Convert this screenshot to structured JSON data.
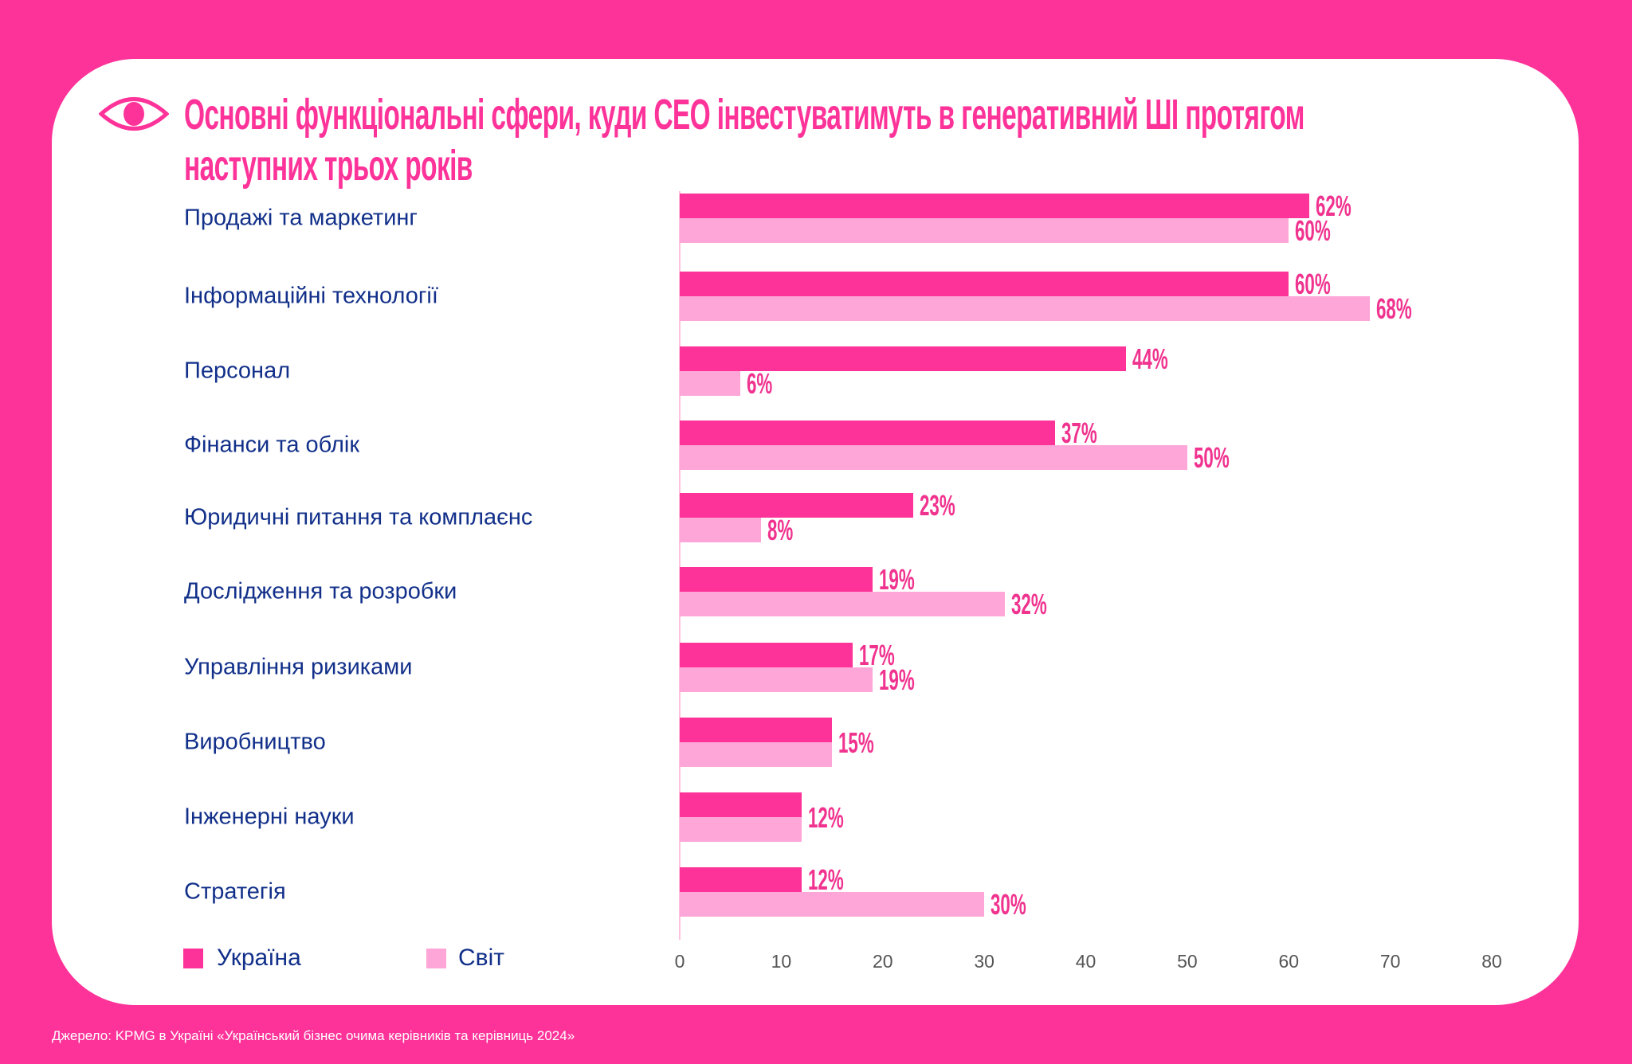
{
  "title_lines": [
    "Основні функціональні сфери, куди CEO інвестуватимуть в генеративний ШІ протягом",
    "наступних трьох років"
  ],
  "source": "Джерело: KPMG в Україні «Український бізнес очима керівників та керівниць 2024»",
  "icon": "eye-icon",
  "colors": {
    "background": "#fd3399",
    "ukraine": "#fd3399",
    "world": "#ffa6d8",
    "label_text": "#12308a",
    "value_text": "#f0338f"
  },
  "chart_data": {
    "type": "bar",
    "orientation": "horizontal",
    "title": "Основні функціональні сфери, куди CEO інвестуватимуть в генеративний ШІ протягом наступних трьох років",
    "categories": [
      "Продажі та маркетинг",
      "Інформаційні технології",
      "Персонал",
      "Фінанси та облік",
      "Юридичні питання та комплаєнс",
      "Дослідження та розробки",
      "Управління ризиками",
      "Виробництво",
      "Інженерні науки",
      "Стратегія"
    ],
    "series": [
      {
        "name": "Україна",
        "values": [
          62,
          60,
          44,
          37,
          23,
          19,
          17,
          15,
          12,
          12
        ],
        "labels": [
          "62%",
          "60%",
          "44%",
          "37%",
          "23%",
          "19%",
          "17%",
          "",
          "",
          "12%"
        ]
      },
      {
        "name": "Світ",
        "values": [
          60,
          68,
          6,
          50,
          8,
          32,
          19,
          15,
          12,
          30
        ],
        "labels": [
          "60%",
          "68%",
          "6%",
          "50%",
          "8%",
          "32%",
          "19%",
          "15%",
          "12%",
          "30%"
        ]
      }
    ],
    "xlim": [
      0,
      80
    ],
    "xticks": [
      "0",
      "10",
      "20",
      "30",
      "40",
      "50",
      "60",
      "70",
      "80"
    ],
    "grid": false,
    "legend": "bottom-left"
  }
}
